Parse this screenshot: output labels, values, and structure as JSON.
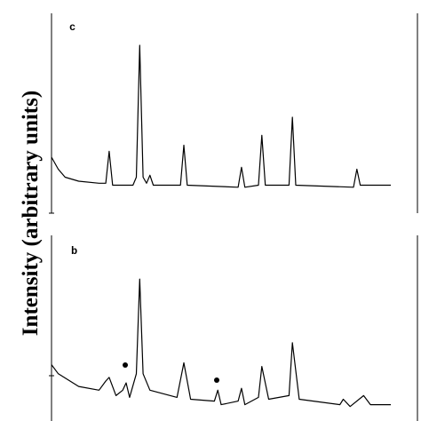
{
  "chart_data": [
    {
      "type": "line",
      "label": "c",
      "ylabel": "Intensity (arbitrary units)",
      "color": "#000000",
      "xlim": [
        0,
        100
      ],
      "ylim": [
        0,
        100
      ],
      "x": [
        0,
        2,
        4,
        8,
        14,
        16,
        17,
        18,
        24,
        25,
        26,
        27,
        28,
        29,
        30,
        38,
        39,
        40,
        55,
        56,
        57,
        61,
        62,
        63,
        70,
        71,
        72,
        89,
        90,
        91,
        100
      ],
      "values": [
        28,
        22,
        18,
        16,
        15,
        15,
        31,
        14,
        14,
        18,
        84,
        18,
        15,
        19,
        14,
        14,
        34,
        14,
        13,
        23,
        13,
        14,
        39,
        14,
        14,
        48,
        14,
        13,
        22,
        14,
        14
      ]
    },
    {
      "type": "line",
      "label": "b",
      "color": "#000000",
      "xlim": [
        0,
        100
      ],
      "ylim": [
        0,
        100
      ],
      "x": [
        0,
        2,
        8,
        14,
        16,
        17,
        19,
        21,
        22,
        23,
        25,
        26,
        27,
        29,
        37,
        39,
        41,
        48,
        49,
        50,
        55,
        56,
        57,
        61,
        62,
        64,
        70,
        71,
        73,
        85,
        86,
        88,
        92,
        94,
        100
      ],
      "values": [
        29,
        24,
        17,
        15,
        20,
        22,
        12,
        15,
        19,
        11,
        24,
        76,
        24,
        15,
        11,
        30,
        10,
        9,
        15,
        7,
        9,
        16,
        7,
        11,
        28,
        10,
        12,
        41,
        10,
        7,
        10,
        6,
        12,
        7,
        7
      ]
    }
  ]
}
